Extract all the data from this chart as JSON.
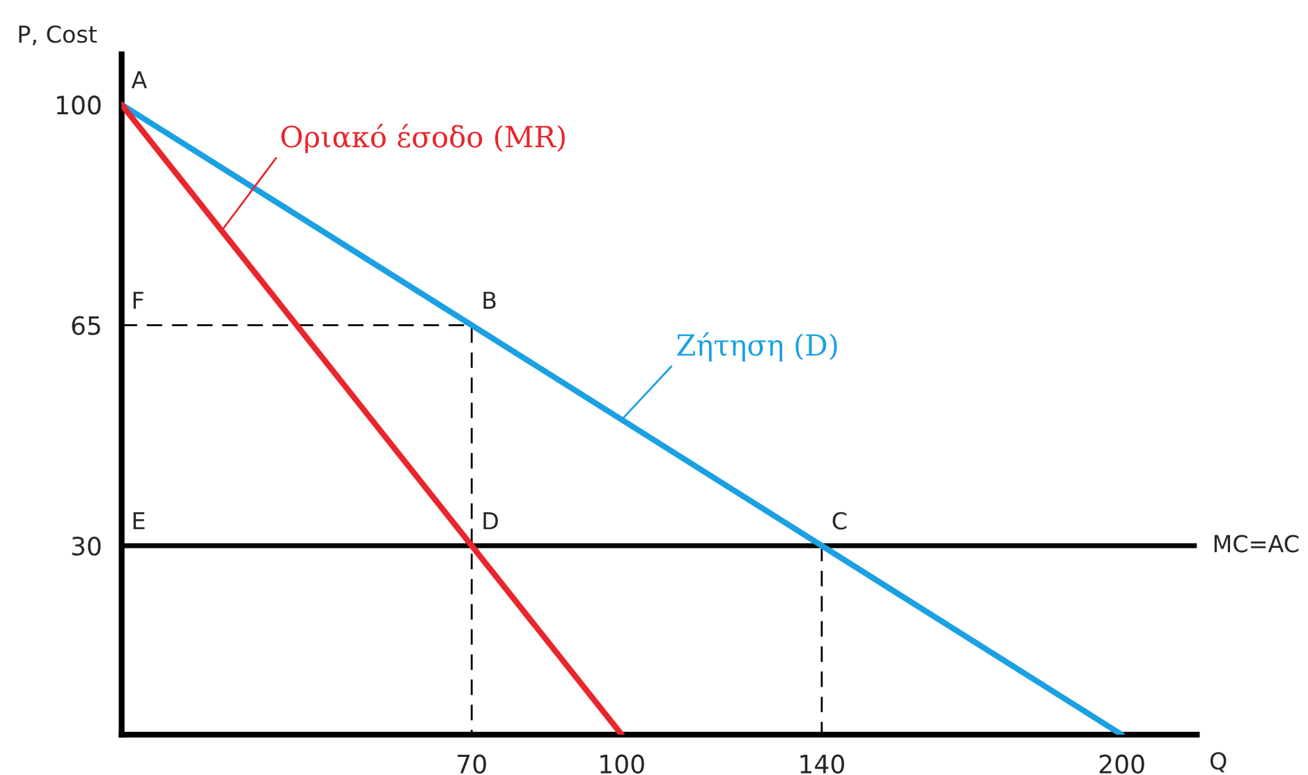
{
  "chart_data": {
    "type": "line",
    "xlabel": "Q",
    "ylabel": "P, Cost",
    "xlim": [
      0,
      215
    ],
    "ylim": [
      0,
      108
    ],
    "xticks": [
      70,
      100,
      140,
      200
    ],
    "yticks": [
      30,
      65,
      100
    ],
    "grid": false,
    "series": [
      {
        "name": "Ζήτηση (D)",
        "color": "#1ba1e2",
        "x": [
          0,
          200
        ],
        "values": [
          100,
          0
        ]
      },
      {
        "name": "Οριακό έσοδο (MR)",
        "color": "#e8262c",
        "x": [
          0,
          100
        ],
        "values": [
          100,
          0
        ]
      },
      {
        "color": "#000000",
        "line_style": "dashed",
        "x": [
          0,
          70,
          70
        ],
        "values": [
          65,
          65,
          0
        ]
      },
      {
        "color": "#000000",
        "line_style": "dashed",
        "x": [
          140,
          140
        ],
        "values": [
          30,
          0
        ]
      }
    ],
    "ref_lines": [
      {
        "axis": "y",
        "value": 30,
        "label": "MC=AC",
        "color": "#000000"
      }
    ],
    "annotations": [
      {
        "text": "A",
        "x": 0,
        "y": 100
      },
      {
        "text": "F",
        "x": 0,
        "y": 65
      },
      {
        "text": "B",
        "x": 70,
        "y": 65
      },
      {
        "text": "E",
        "x": 0,
        "y": 30
      },
      {
        "text": "D",
        "x": 70,
        "y": 30
      },
      {
        "text": "C",
        "x": 140,
        "y": 30
      }
    ]
  }
}
